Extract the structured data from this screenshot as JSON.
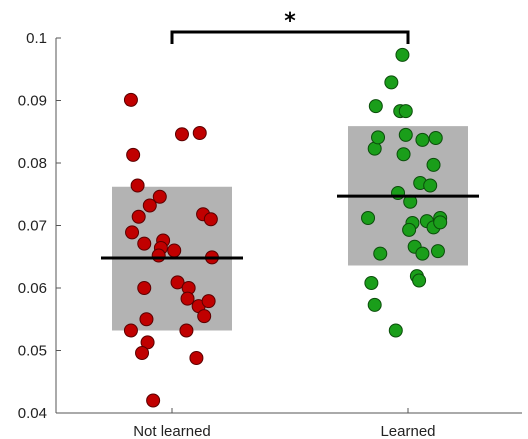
{
  "chart_data": {
    "type": "scatter",
    "title": "",
    "xlabel": "",
    "ylabel": "",
    "ylim": [
      0.04,
      0.1
    ],
    "yticks": [
      0.04,
      0.05,
      0.06,
      0.07,
      0.08,
      0.09,
      0.1
    ],
    "ytick_labels": [
      "0.04",
      "0.05",
      "0.06",
      "0.07",
      "0.08",
      "0.09",
      "0.1"
    ],
    "categories": [
      "Not learned",
      "Learned"
    ],
    "grid": false,
    "legend": "none",
    "significance": {
      "between": [
        0,
        1
      ],
      "label": "*"
    },
    "groups": [
      {
        "category": "Not learned",
        "color": "#c00000",
        "edge_color": "#5a0000",
        "mean": 0.0648,
        "box": [
          0.0532,
          0.0762
        ],
        "points": [
          {
            "jitter": -0.37,
            "y": 0.0901
          },
          {
            "jitter": -0.35,
            "y": 0.0813
          },
          {
            "jitter": -0.31,
            "y": 0.0764
          },
          {
            "jitter": -0.3,
            "y": 0.0714
          },
          {
            "jitter": -0.36,
            "y": 0.0689
          },
          {
            "jitter": -0.25,
            "y": 0.0671
          },
          {
            "jitter": -0.25,
            "y": 0.06
          },
          {
            "jitter": -0.23,
            "y": 0.055
          },
          {
            "jitter": -0.37,
            "y": 0.0532
          },
          {
            "jitter": -0.22,
            "y": 0.0513
          },
          {
            "jitter": -0.27,
            "y": 0.0496
          },
          {
            "jitter": -0.17,
            "y": 0.042
          },
          {
            "jitter": -0.2,
            "y": 0.0732
          },
          {
            "jitter": -0.11,
            "y": 0.0746
          },
          {
            "jitter": -0.08,
            "y": 0.0676
          },
          {
            "jitter": -0.1,
            "y": 0.0664
          },
          {
            "jitter": -0.12,
            "y": 0.0652
          },
          {
            "jitter": 0.02,
            "y": 0.066
          },
          {
            "jitter": 0.09,
            "y": 0.0846
          },
          {
            "jitter": 0.05,
            "y": 0.0609
          },
          {
            "jitter": 0.15,
            "y": 0.06
          },
          {
            "jitter": 0.14,
            "y": 0.0583
          },
          {
            "jitter": 0.13,
            "y": 0.0532
          },
          {
            "jitter": 0.22,
            "y": 0.0488
          },
          {
            "jitter": 0.25,
            "y": 0.0848
          },
          {
            "jitter": 0.28,
            "y": 0.0718
          },
          {
            "jitter": 0.24,
            "y": 0.0571
          },
          {
            "jitter": 0.29,
            "y": 0.0555
          },
          {
            "jitter": 0.35,
            "y": 0.071
          },
          {
            "jitter": 0.36,
            "y": 0.0649
          },
          {
            "jitter": 0.33,
            "y": 0.0579
          }
        ]
      },
      {
        "category": "Learned",
        "color": "#1a9e1a",
        "edge_color": "#0b4d0b",
        "mean": 0.0747,
        "box": [
          0.0636,
          0.0859
        ],
        "points": [
          {
            "jitter": -0.36,
            "y": 0.0712
          },
          {
            "jitter": -0.33,
            "y": 0.0608
          },
          {
            "jitter": -0.3,
            "y": 0.0573
          },
          {
            "jitter": -0.29,
            "y": 0.0891
          },
          {
            "jitter": -0.3,
            "y": 0.0823
          },
          {
            "jitter": -0.27,
            "y": 0.0841
          },
          {
            "jitter": -0.25,
            "y": 0.0655
          },
          {
            "jitter": -0.15,
            "y": 0.0929
          },
          {
            "jitter": -0.11,
            "y": 0.0532
          },
          {
            "jitter": -0.09,
            "y": 0.0752
          },
          {
            "jitter": -0.05,
            "y": 0.0973
          },
          {
            "jitter": -0.07,
            "y": 0.0883
          },
          {
            "jitter": -0.02,
            "y": 0.0883
          },
          {
            "jitter": -0.02,
            "y": 0.0845
          },
          {
            "jitter": -0.04,
            "y": 0.0814
          },
          {
            "jitter": 0.02,
            "y": 0.0738
          },
          {
            "jitter": 0.04,
            "y": 0.0704
          },
          {
            "jitter": 0.01,
            "y": 0.0693
          },
          {
            "jitter": 0.06,
            "y": 0.0666
          },
          {
            "jitter": 0.08,
            "y": 0.0619
          },
          {
            "jitter": 0.1,
            "y": 0.0612
          },
          {
            "jitter": 0.11,
            "y": 0.0768
          },
          {
            "jitter": 0.13,
            "y": 0.0837
          },
          {
            "jitter": 0.13,
            "y": 0.0655
          },
          {
            "jitter": 0.17,
            "y": 0.0707
          },
          {
            "jitter": 0.2,
            "y": 0.0764
          },
          {
            "jitter": 0.23,
            "y": 0.0797
          },
          {
            "jitter": 0.23,
            "y": 0.0697
          },
          {
            "jitter": 0.25,
            "y": 0.084
          },
          {
            "jitter": 0.29,
            "y": 0.0712
          },
          {
            "jitter": 0.29,
            "y": 0.0705
          },
          {
            "jitter": 0.27,
            "y": 0.0659
          }
        ]
      }
    ],
    "box_color": "#b3b3b3",
    "mean_line_color": "#000000"
  }
}
